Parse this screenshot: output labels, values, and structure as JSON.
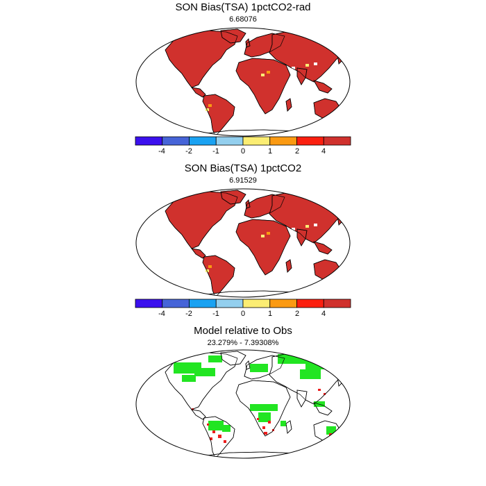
{
  "panels": [
    {
      "title": "SON Bias(TSA) 1pctCO2-rad",
      "subtitle": "6.68076"
    },
    {
      "title": "SON Bias(TSA) 1pctCO2",
      "subtitle": "6.91529"
    },
    {
      "title": "Model relative to Obs",
      "subtitle": "23.279% - 7.39308%"
    }
  ],
  "colorbar": {
    "tick_labels": [
      "-4",
      "-2",
      "-1",
      "0",
      "1",
      "2",
      "4"
    ],
    "colors": [
      "#3b10ee",
      "#4664d8",
      "#1aa2f2",
      "#93cfee",
      "#fbed73",
      "#fb9a12",
      "#fb1f0f",
      "#d0312d"
    ]
  },
  "colors": {
    "bias_land": "#d0312d",
    "bias_hot": "#fb9a12",
    "bias_mild": "#fbed73",
    "better": "#22e522",
    "worse": "#ec1d1d"
  }
}
